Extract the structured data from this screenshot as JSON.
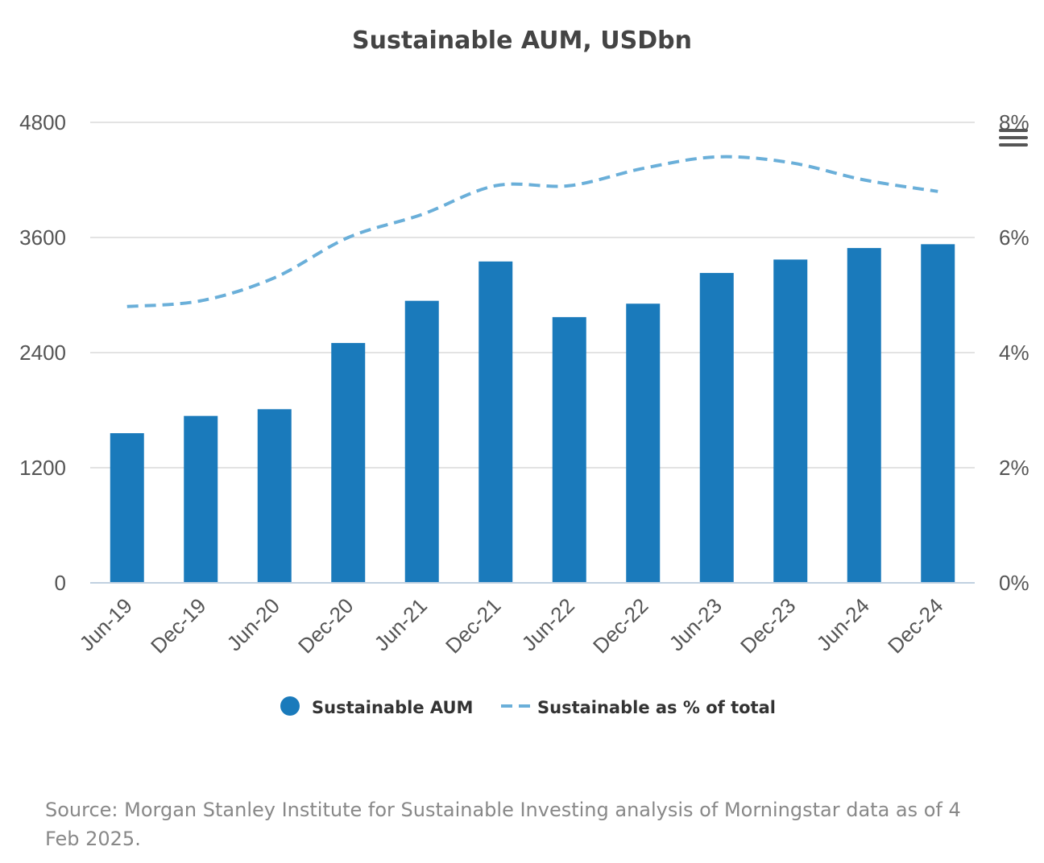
{
  "chart_data": {
    "type": "bar",
    "title": "Sustainable AUM, USDbn",
    "categories": [
      "Jun-19",
      "Dec-19",
      "Jun-20",
      "Dec-20",
      "Jun-21",
      "Dec-21",
      "Jun-22",
      "Dec-22",
      "Jun-23",
      "Dec-23",
      "Jun-24",
      "Dec-24"
    ],
    "series": [
      {
        "name": "Sustainable AUM",
        "type": "bar",
        "axis": "left",
        "color": "#1a7abb",
        "values": [
          1560,
          1740,
          1810,
          2500,
          2940,
          3350,
          2770,
          2910,
          3230,
          3370,
          3490,
          3530
        ]
      },
      {
        "name": "Sustainable as % of total",
        "type": "line",
        "style": "dashed",
        "axis": "right",
        "color": "#6aafd9",
        "values": [
          4.8,
          4.9,
          5.3,
          6.0,
          6.4,
          6.9,
          6.9,
          7.2,
          7.4,
          7.3,
          7.0,
          6.8
        ]
      }
    ],
    "y_left": {
      "ticks": [
        "0",
        "1200",
        "2400",
        "3600",
        "4800"
      ],
      "ylim": [
        0,
        4800
      ]
    },
    "y_right": {
      "ticks": [
        "0%",
        "2%",
        "4%",
        "6%",
        "8%"
      ],
      "ylim": [
        0,
        8
      ]
    },
    "grid": true,
    "legend_placement": "bottom"
  },
  "source_note": "Source: Morgan Stanley Institute for Sustainable Investing analysis of Morningstar data as of 4 Feb 2025.",
  "menu": {
    "icon": "hamburger-menu-icon"
  },
  "colors": {
    "bar": "#1a7abb",
    "line": "#6aafd9",
    "grid": "#e3e3e3",
    "axis": "#c0d0e0"
  }
}
